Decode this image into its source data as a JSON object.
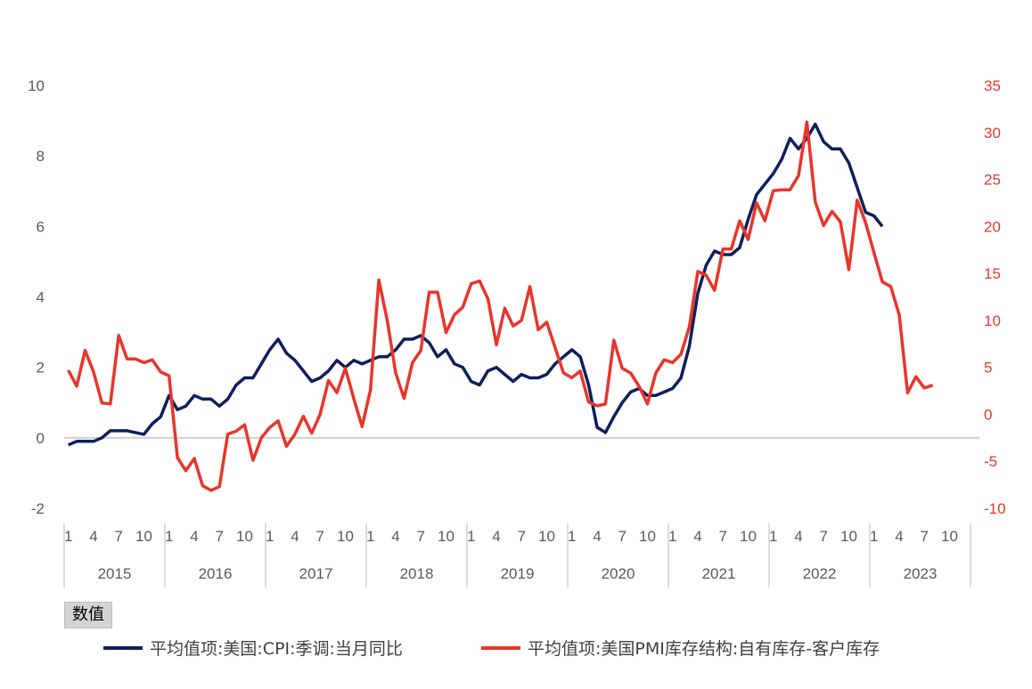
{
  "chart_data": {
    "type": "line",
    "title": "",
    "field_button": "数值",
    "x": {
      "start": "2015-01",
      "month_ticks": [
        "1",
        "4",
        "7",
        "10"
      ],
      "years": [
        "2015",
        "2016",
        "2017",
        "2018",
        "2019",
        "2020",
        "2021",
        "2022",
        "2023"
      ]
    },
    "y_left": {
      "min": -2,
      "max": 10,
      "ticks": [
        "-2",
        "0",
        "2",
        "4",
        "6",
        "8",
        "10"
      ]
    },
    "y_right": {
      "min": -10,
      "max": 35,
      "ticks": [
        "-10",
        "-5",
        "0",
        "5",
        "10",
        "15",
        "20",
        "25",
        "30",
        "35"
      ]
    },
    "series": [
      {
        "name": "平均值项:美国:CPI:季调:当月同比",
        "axis": "left",
        "color": "#0d1f5c",
        "values": [
          -0.2,
          -0.1,
          -0.1,
          -0.1,
          0.0,
          0.2,
          0.2,
          0.2,
          0.15,
          0.1,
          0.4,
          0.6,
          1.2,
          0.8,
          0.9,
          1.2,
          1.1,
          1.1,
          0.9,
          1.1,
          1.5,
          1.7,
          1.7,
          2.1,
          2.5,
          2.8,
          2.4,
          2.2,
          1.9,
          1.6,
          1.7,
          1.9,
          2.2,
          2.0,
          2.2,
          2.1,
          2.2,
          2.3,
          2.3,
          2.5,
          2.8,
          2.8,
          2.9,
          2.7,
          2.3,
          2.5,
          2.1,
          2.0,
          1.6,
          1.5,
          1.9,
          2.0,
          1.8,
          1.6,
          1.8,
          1.7,
          1.7,
          1.8,
          2.1,
          2.3,
          2.5,
          2.3,
          1.5,
          0.3,
          0.15,
          0.6,
          1.0,
          1.3,
          1.4,
          1.2,
          1.2,
          1.3,
          1.4,
          1.7,
          2.6,
          4.1,
          4.9,
          5.3,
          5.2,
          5.2,
          5.4,
          6.2,
          6.9,
          7.2,
          7.5,
          7.9,
          8.5,
          8.2,
          8.5,
          8.9,
          8.4,
          8.2,
          8.2,
          7.8,
          7.1,
          6.4,
          6.3,
          6.0
        ]
      },
      {
        "name": "平均值项:美国PMI库存结构:自有库存-客户库存",
        "axis": "right",
        "color": "#e8352b",
        "values": [
          4.7,
          3.0,
          6.8,
          4.5,
          1.2,
          1.1,
          8.4,
          5.9,
          5.9,
          5.5,
          5.8,
          4.5,
          4.1,
          -4.6,
          -6.0,
          -4.7,
          -7.6,
          -8.1,
          -7.7,
          -2.1,
          -1.8,
          -1.1,
          -4.9,
          -2.5,
          -1.4,
          -0.7,
          -3.4,
          -2.1,
          -0.2,
          -2.0,
          0.0,
          3.6,
          2.3,
          4.9,
          1.7,
          -1.3,
          2.6,
          14.3,
          10.0,
          4.4,
          1.7,
          5.5,
          6.8,
          13.0,
          13.0,
          8.7,
          10.6,
          11.4,
          13.9,
          14.2,
          12.3,
          7.4,
          11.3,
          9.4,
          10.0,
          13.6,
          9.0,
          9.8,
          7.1,
          4.4,
          3.9,
          4.6,
          1.3,
          0.9,
          1.1,
          7.9,
          4.9,
          4.4,
          3.0,
          1.1,
          4.4,
          5.8,
          5.5,
          6.4,
          9.3,
          15.2,
          14.8,
          13.2,
          17.6,
          17.6,
          20.6,
          18.6,
          22.5,
          20.6,
          23.8,
          23.9,
          23.9,
          25.4,
          31.1,
          22.6,
          20.1,
          21.6,
          20.5,
          15.4,
          22.8,
          20.4,
          17.2,
          14.1,
          13.6,
          10.6,
          2.3,
          4.0,
          2.8,
          3.1
        ]
      }
    ],
    "legend": "bottom",
    "grid": false
  }
}
